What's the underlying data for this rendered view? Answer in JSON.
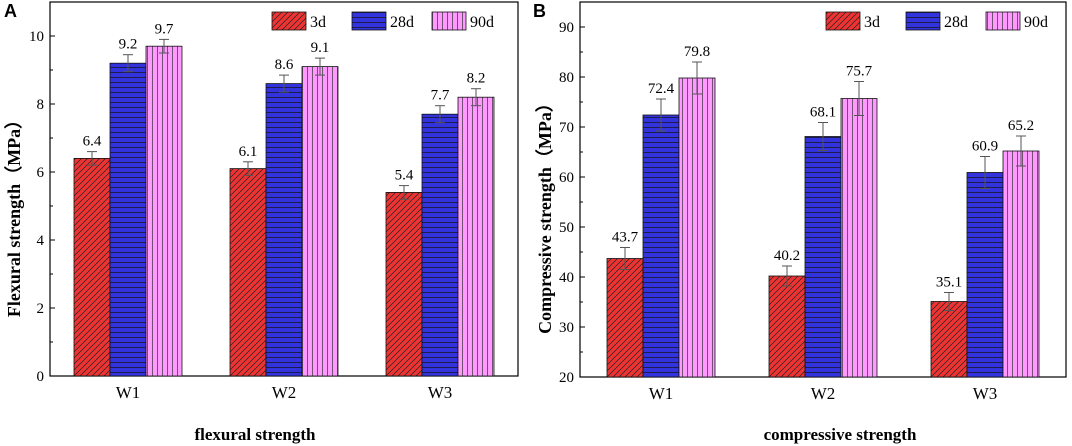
{
  "colors": {
    "d3": "#ee3333",
    "d28": "#3333dd",
    "d90": "#ff99ff"
  },
  "chart_data": [
    {
      "type": "bar",
      "panel": "A",
      "title": "",
      "xlabel": "flexural strength",
      "ylabel": "Flexural strength（MPa）",
      "ylim": [
        0,
        11
      ],
      "yticks": [
        0,
        2,
        4,
        6,
        8,
        10
      ],
      "categories": [
        "W1",
        "W2",
        "W3"
      ],
      "series": [
        {
          "name": "3d",
          "values": [
            6.4,
            6.1,
            5.4
          ],
          "errors": [
            0.2,
            0.2,
            0.2
          ],
          "labels": [
            "6.4",
            "6.1",
            "5.4"
          ]
        },
        {
          "name": "28d",
          "values": [
            9.2,
            8.6,
            7.7
          ],
          "errors": [
            0.25,
            0.25,
            0.25
          ],
          "labels": [
            "9.2",
            "8.6",
            "7.7"
          ]
        },
        {
          "name": "90d",
          "values": [
            9.7,
            9.1,
            8.2
          ],
          "errors": [
            0.2,
            0.25,
            0.25
          ],
          "labels": [
            "9.7",
            "9.1",
            "8.2"
          ]
        }
      ],
      "grid": false,
      "legend": "top-right"
    },
    {
      "type": "bar",
      "panel": "B",
      "title": "",
      "xlabel": "compressive strength",
      "ylabel": "Compressive strength（MPa）",
      "ylim": [
        20,
        95
      ],
      "yticks": [
        20,
        30,
        40,
        50,
        60,
        70,
        80,
        90
      ],
      "categories": [
        "W1",
        "W2",
        "W3"
      ],
      "series": [
        {
          "name": "3d",
          "values": [
            43.7,
            40.2,
            35.1
          ],
          "errors": [
            2.2,
            2.0,
            1.8
          ],
          "labels": [
            "43.7",
            "40.2",
            "35.1"
          ]
        },
        {
          "name": "28d",
          "values": [
            72.4,
            68.1,
            60.9
          ],
          "errors": [
            3.2,
            2.8,
            3.2
          ],
          "labels": [
            "72.4",
            "68.1",
            "60.9"
          ]
        },
        {
          "name": "90d",
          "values": [
            79.8,
            75.7,
            65.2
          ],
          "errors": [
            3.2,
            3.4,
            3.0
          ],
          "labels": [
            "79.8",
            "75.7",
            "65.2"
          ]
        }
      ],
      "grid": false,
      "legend": "top-right"
    }
  ]
}
